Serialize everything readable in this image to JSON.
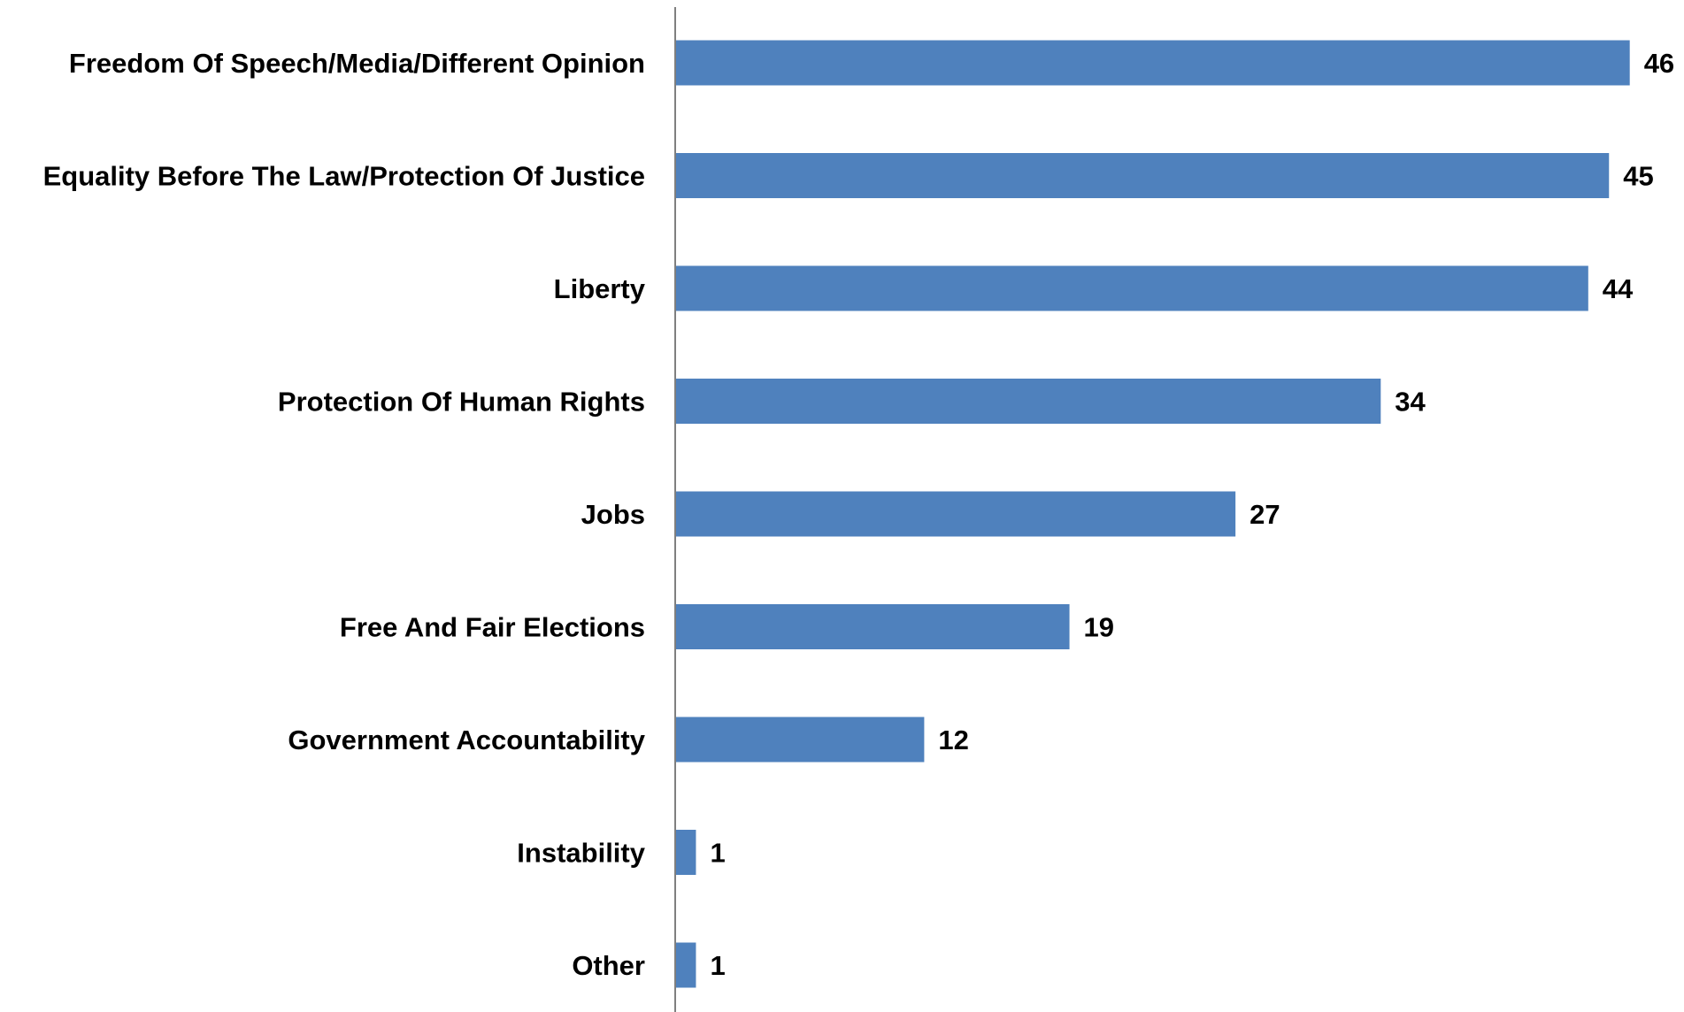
{
  "chart_data": {
    "type": "bar",
    "orientation": "horizontal",
    "title": "",
    "xlabel": "",
    "ylabel": "",
    "categories": [
      "Freedom Of Speech/Media/Different Opinion",
      "Equality Before The Law/Protection Of Justice",
      "Liberty",
      "Protection Of Human Rights",
      "Jobs",
      "Free And Fair Elections",
      "Government Accountability",
      "Instability",
      "Other"
    ],
    "values": [
      46,
      45,
      44,
      34,
      27,
      19,
      12,
      1,
      1
    ],
    "data_labels": [
      "46",
      "45",
      "44",
      "34",
      "27",
      "19",
      "12",
      "1",
      "1"
    ],
    "xlim": [
      0,
      48
    ],
    "grid": false,
    "legend": "none",
    "bar_color": "#4f81bd",
    "axis_color": "#7f7f7f"
  }
}
